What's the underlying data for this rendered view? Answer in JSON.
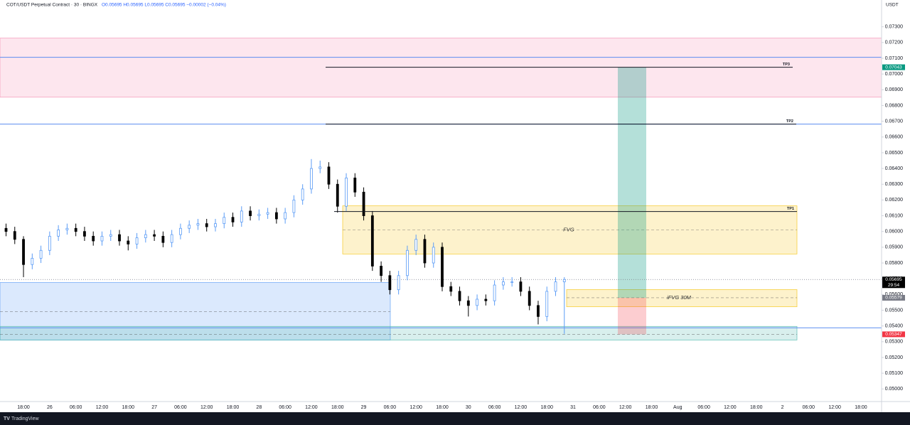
{
  "chart_data": {
    "type": "candlestick",
    "symbol": "COT/USDT Perpetual Contract · 30 · BINGX",
    "ohlc": "O0.05695 H0.05695 L0.05695 C0.05695 −0.00002 (−0.04%)",
    "currency": "USDT",
    "footer": "TradingView",
    "up_color": "#5b9cf6",
    "down_color": "#000000",
    "ylim": [
      0.0492,
      0.0747
    ],
    "yticks": [
      {
        "value": 0.05,
        "label": "0.05000"
      },
      {
        "value": 0.051,
        "label": "0.05100"
      },
      {
        "value": 0.052,
        "label": "0.05200"
      },
      {
        "value": 0.053,
        "label": "0.05300"
      },
      {
        "value": 0.054,
        "label": "0.05400"
      },
      {
        "value": 0.055,
        "label": "0.05500"
      },
      {
        "value": 0.056,
        "label": "0.05600"
      },
      {
        "value": 0.057,
        "label": "0.05700"
      },
      {
        "value": 0.058,
        "label": "0.05800"
      },
      {
        "value": 0.059,
        "label": "0.05900"
      },
      {
        "value": 0.06,
        "label": "0.06000"
      },
      {
        "value": 0.061,
        "label": "0.06100"
      },
      {
        "value": 0.062,
        "label": "0.06200"
      },
      {
        "value": 0.063,
        "label": "0.06300"
      },
      {
        "value": 0.064,
        "label": "0.06400"
      },
      {
        "value": 0.065,
        "label": "0.06500"
      },
      {
        "value": 0.066,
        "label": "0.06600"
      },
      {
        "value": 0.067,
        "label": "0.06700"
      },
      {
        "value": 0.068,
        "label": "0.06800"
      },
      {
        "value": 0.069,
        "label": "0.06900"
      },
      {
        "value": 0.07,
        "label": "0.07000"
      },
      {
        "value": 0.071,
        "label": "0.07100"
      },
      {
        "value": 0.072,
        "label": "0.07200"
      },
      {
        "value": 0.073,
        "label": "0.07300"
      }
    ],
    "time_labels": [
      "18:00",
      "26",
      "06:00",
      "12:00",
      "18:00",
      "27",
      "06:00",
      "12:00",
      "18:00",
      "28",
      "06:00",
      "12:00",
      "18:00",
      "29",
      "06:00",
      "12:00",
      "18:00",
      "30",
      "06:00",
      "12:00",
      "18:00",
      "31",
      "06:00",
      "12:00",
      "18:00",
      "Aug",
      "06:00",
      "12:00",
      "18:00",
      "2",
      "06:00",
      "12:00",
      "18:00"
    ],
    "open": [
      0.0602,
      0.06,
      0.0595,
      0.0579,
      0.0583,
      0.0588,
      0.0597,
      0.0601,
      0.0602,
      0.06,
      0.0597,
      0.0594,
      0.0597,
      0.0598,
      0.0594,
      0.0592,
      0.0596,
      0.0598,
      0.0597,
      0.0593,
      0.0598,
      0.0602,
      0.0604,
      0.0605,
      0.0603,
      0.0605,
      0.0609,
      0.0606,
      0.0613,
      0.061,
      0.0611,
      0.0612,
      0.0608,
      0.0612,
      0.062,
      0.0627,
      0.064,
      0.0641,
      0.063,
      0.0616,
      0.0634,
      0.0625,
      0.061,
      0.0578,
      0.0572,
      0.0563,
      0.0572,
      0.0588,
      0.0595,
      0.058,
      0.059,
      0.0565,
      0.0562,
      0.0556,
      0.0553,
      0.0557,
      0.0556,
      0.0566,
      0.0568,
      0.0568,
      0.0562,
      0.0553,
      0.0546,
      0.0562,
      0.0568
    ],
    "high": [
      0.0605,
      0.0603,
      0.0597,
      0.0586,
      0.0591,
      0.06,
      0.0604,
      0.0605,
      0.0605,
      0.0603,
      0.06,
      0.06,
      0.0601,
      0.0601,
      0.0597,
      0.0599,
      0.0601,
      0.0601,
      0.06,
      0.0601,
      0.0605,
      0.0607,
      0.0608,
      0.0608,
      0.0608,
      0.0612,
      0.0612,
      0.0616,
      0.0616,
      0.0614,
      0.0615,
      0.0615,
      0.0615,
      0.0623,
      0.063,
      0.0646,
      0.0645,
      0.0644,
      0.0633,
      0.0637,
      0.0637,
      0.0628,
      0.0613,
      0.0581,
      0.0575,
      0.0575,
      0.0591,
      0.0598,
      0.0598,
      0.0593,
      0.0593,
      0.0568,
      0.0565,
      0.0559,
      0.056,
      0.056,
      0.0569,
      0.0571,
      0.0571,
      0.0571,
      0.0565,
      0.0556,
      0.0565,
      0.0571,
      0.0571
    ],
    "low": [
      0.0597,
      0.0592,
      0.0571,
      0.0576,
      0.058,
      0.0585,
      0.0594,
      0.0598,
      0.0597,
      0.0594,
      0.0591,
      0.0591,
      0.0594,
      0.0591,
      0.0588,
      0.0589,
      0.0593,
      0.0594,
      0.059,
      0.059,
      0.0595,
      0.0599,
      0.0601,
      0.06,
      0.06,
      0.0602,
      0.0603,
      0.0603,
      0.0607,
      0.0607,
      0.0608,
      0.0605,
      0.0605,
      0.0609,
      0.0617,
      0.0624,
      0.0637,
      0.0627,
      0.0612,
      0.0613,
      0.0622,
      0.0607,
      0.0575,
      0.0568,
      0.056,
      0.056,
      0.0569,
      0.0585,
      0.0577,
      0.0577,
      0.0562,
      0.0559,
      0.0553,
      0.0546,
      0.055,
      0.0553,
      0.0553,
      0.0563,
      0.0565,
      0.0559,
      0.055,
      0.0541,
      0.0543,
      0.0559,
      0.0535
    ],
    "close": [
      0.06,
      0.0595,
      0.0579,
      0.0583,
      0.0588,
      0.0597,
      0.0601,
      0.0602,
      0.06,
      0.0597,
      0.0594,
      0.0597,
      0.0598,
      0.0594,
      0.0592,
      0.0596,
      0.0598,
      0.0597,
      0.0593,
      0.0598,
      0.0602,
      0.0604,
      0.0605,
      0.0603,
      0.0605,
      0.0609,
      0.0606,
      0.0613,
      0.061,
      0.0611,
      0.0612,
      0.0608,
      0.0612,
      0.062,
      0.0627,
      0.064,
      0.0641,
      0.063,
      0.0616,
      0.0634,
      0.0625,
      0.061,
      0.0578,
      0.0572,
      0.0563,
      0.0572,
      0.0588,
      0.0595,
      0.058,
      0.059,
      0.0565,
      0.0562,
      0.0556,
      0.0553,
      0.0557,
      0.0556,
      0.0566,
      0.0568,
      0.0568,
      0.0562,
      0.0553,
      0.0546,
      0.0562,
      0.0568,
      0.05695
    ],
    "zones": [
      {
        "top": 0.07228,
        "bottom": 0.06853,
        "color": "#f48fb1"
      },
      {
        "top": 0.05676,
        "bottom": 0.05311,
        "mid": 0.05491,
        "color": "#5b9cf6"
      },
      {
        "top": 0.05397,
        "bottom": 0.05311,
        "mid": 0.05347,
        "color": "#4db6ac"
      },
      {
        "label": "FVG",
        "top": 0.06163,
        "bottom": 0.05857,
        "mid": 0.0601,
        "color": "#f5c518"
      },
      {
        "label": "iFVG 30M",
        "top": 0.05631,
        "bottom": 0.05522,
        "mid": 0.05579,
        "color": "#f5c518"
      }
    ],
    "hlines": [
      0.07106,
      0.06682,
      0.05388
    ],
    "hline_color": "#5b8def",
    "levels": [
      {
        "label": "TP3",
        "value": 0.07043
      },
      {
        "label": "TP2",
        "value": 0.06682
      },
      {
        "label": "TP1",
        "value": 0.06127
      }
    ],
    "position": {
      "target": 0.07043,
      "entry": 0.05579,
      "stop": 0.05347
    },
    "price_markers": [
      {
        "value": 0.07043,
        "color": "#089981"
      },
      {
        "value": 0.05695,
        "color": "#000000",
        "countdown": "29:54"
      },
      {
        "value": 0.05579,
        "color": "#787b86"
      },
      {
        "value": 0.05347,
        "color": "#f23645"
      }
    ]
  }
}
